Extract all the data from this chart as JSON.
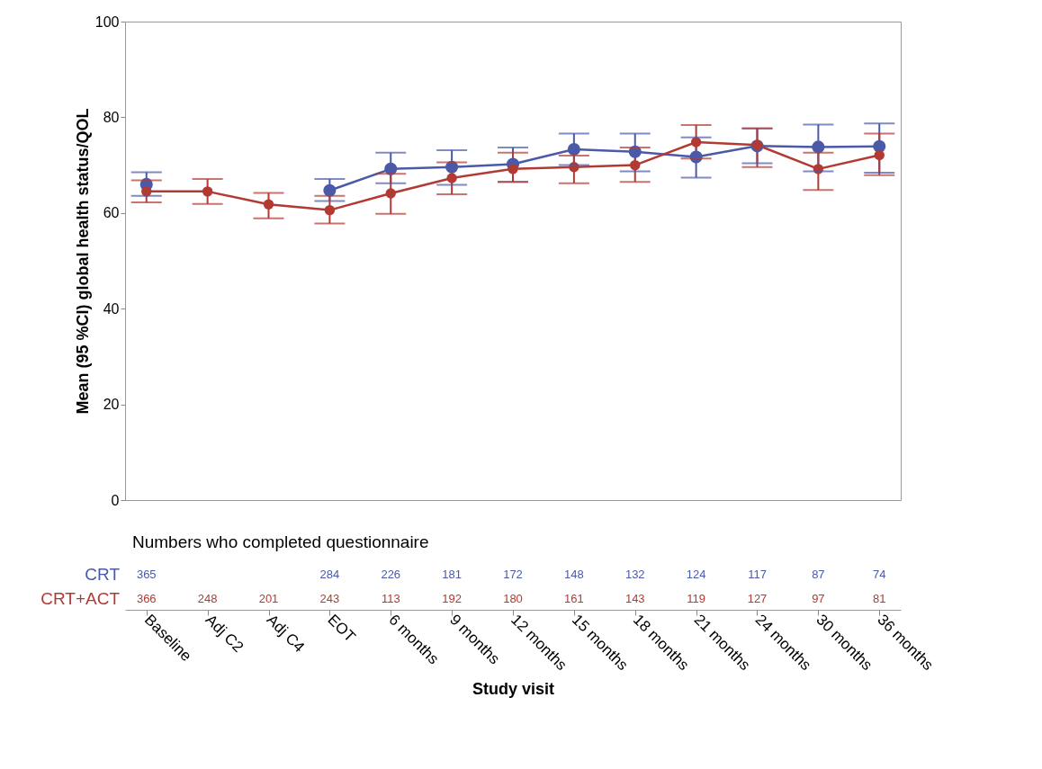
{
  "chart_data": {
    "type": "line",
    "xlabel": "Study visit",
    "ylabel": "Mean (95 %CI) global health status/QOL",
    "categories": [
      "Baseline",
      "Adj C2",
      "Adj C4",
      "EOT",
      "6 months",
      "9 months",
      "12 months",
      "15 months",
      "18 months",
      "21 months",
      "24 months",
      "30 months",
      "36 months"
    ],
    "series": [
      {
        "name": "CRT",
        "color": "#4a5aa8",
        "values": [
          66.0,
          null,
          null,
          64.7,
          69.2,
          69.6,
          70.2,
          73.3,
          72.8,
          71.7,
          74.0,
          73.8,
          73.9
        ],
        "errors": [
          [
            63.6,
            68.5
          ],
          null,
          null,
          [
            62.5,
            67.1
          ],
          [
            66.2,
            72.6
          ],
          [
            65.9,
            73.1
          ],
          [
            66.5,
            73.7
          ],
          [
            70.0,
            76.6
          ],
          [
            68.7,
            76.6
          ],
          [
            67.4,
            75.8
          ],
          [
            70.4,
            77.7
          ],
          [
            68.7,
            78.5
          ],
          [
            68.4,
            78.7
          ]
        ]
      },
      {
        "name": "CRT+ACT",
        "color": "#b23a32",
        "values": [
          64.5,
          64.5,
          61.8,
          60.6,
          64.1,
          67.3,
          69.2,
          69.6,
          70.0,
          74.8,
          74.2,
          69.2,
          72.1
        ],
        "errors": [
          [
            62.2,
            66.8
          ],
          [
            61.9,
            67.1
          ],
          [
            58.9,
            64.2
          ],
          [
            57.8,
            63.6
          ],
          [
            59.8,
            68.2
          ],
          [
            63.9,
            70.6
          ],
          [
            66.5,
            72.6
          ],
          [
            66.2,
            72.0
          ],
          [
            66.5,
            73.7
          ],
          [
            71.4,
            78.4
          ],
          [
            69.6,
            77.7
          ],
          [
            64.8,
            72.6
          ],
          [
            67.9,
            76.6
          ]
        ]
      }
    ],
    "ylim": [
      0,
      100
    ],
    "yticks": [
      0,
      20,
      40,
      60,
      80,
      100
    ],
    "grid": false,
    "legend": false,
    "marker": "circle",
    "line_style": "solid",
    "annotations": [
      "Numbers who completed questionnaire",
      "365",
      "284",
      "226",
      "181",
      "172",
      "148",
      "132",
      "124",
      "117",
      "87",
      "74",
      "366",
      "248",
      "201",
      "243",
      "113",
      "192",
      "180",
      "161",
      "143",
      "119",
      "127",
      "97",
      "81"
    ]
  }
}
